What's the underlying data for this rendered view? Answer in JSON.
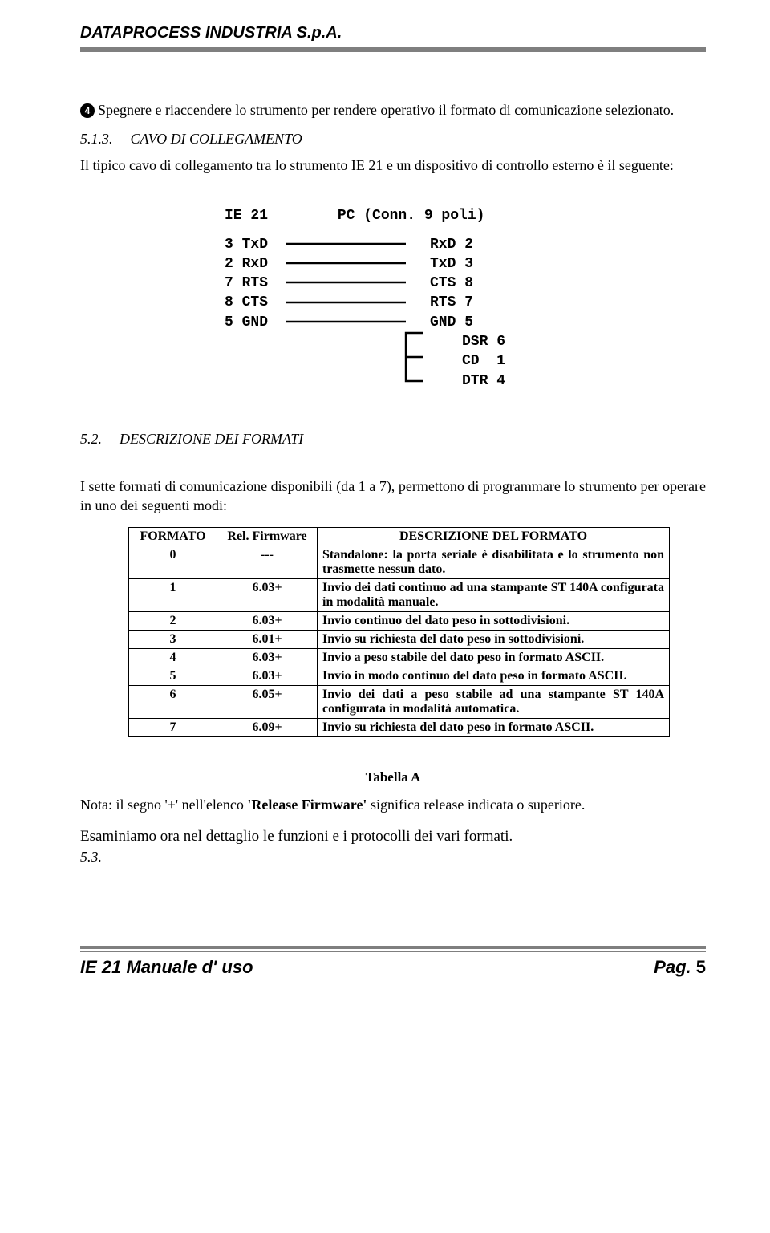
{
  "header": {
    "company": "DATAPROCESS INDUSTRIA S.p.A."
  },
  "step4": {
    "bullet": "4",
    "text": "Spegnere e riaccendere lo strumento per rendere operativo il formato di comunicazione selezionato."
  },
  "sec513": {
    "num": "5.1.3.",
    "title": "CAVO DI COLLEGAMENTO",
    "intro": "Il tipico cavo di collegamento tra lo strumento IE 21 e un dispositivo di controllo esterno è il seguente:"
  },
  "wiring": {
    "left_head": "IE 21",
    "right_head": "PC (Conn. 9 poli)",
    "pairs": [
      {
        "l": "3 TxD",
        "r": "RxD 2"
      },
      {
        "l": "2 RxD",
        "r": "TxD 3"
      },
      {
        "l": "7 RTS",
        "r": "CTS 8"
      },
      {
        "l": "8 CTS",
        "r": "RTS 7"
      },
      {
        "l": "5 GND",
        "r": "GND 5"
      }
    ],
    "extras": [
      "DSR 6",
      "CD  1",
      "DTR 4"
    ]
  },
  "sec52": {
    "num": "5.2.",
    "title": "DESCRIZIONE DEI FORMATI",
    "intro": "I sette formati di comunicazione disponibili (da 1 a 7), permettono di programmare lo strumento per operare in uno dei seguenti modi:"
  },
  "table": {
    "headers": [
      "FORMATO",
      "Rel. Firmware",
      "DESCRIZIONE DEL FORMATO"
    ],
    "rows": [
      {
        "f": "0",
        "fw": "---",
        "d": "Standalone: la porta seriale è disabilitata e lo strumento non trasmette nessun dato."
      },
      {
        "f": "1",
        "fw": "6.03+",
        "d": "Invio dei dati continuo ad una stampante ST 140A configurata in modalità manuale."
      },
      {
        "f": "2",
        "fw": "6.03+",
        "d": "Invio continuo del dato peso in sottodivisioni."
      },
      {
        "f": "3",
        "fw": "6.01+",
        "d": "Invio su richiesta del dato peso in sottodivisioni."
      },
      {
        "f": "4",
        "fw": "6.03+",
        "d": "Invio a peso stabile del dato peso in formato ASCII."
      },
      {
        "f": "5",
        "fw": "6.03+",
        "d": "Invio in modo continuo del dato peso in formato ASCII."
      },
      {
        "f": "6",
        "fw": "6.05+",
        "d": "Invio dei dati a peso stabile ad una stampante ST 140A configurata in modalità automatica."
      },
      {
        "f": "7",
        "fw": "6.09+",
        "d": "Invio su richiesta del dato peso in formato ASCII."
      }
    ],
    "caption": "Tabella A"
  },
  "note": {
    "prefix": "Nota: il segno '+' nell'elenco ",
    "bold": "'Release Firmware'",
    "suffix": " significa release indicata o superiore."
  },
  "closing": {
    "text": "Esaminiamo ora nel dettaglio le funzioni e i protocolli dei vari formati.",
    "sec": "5.3."
  },
  "footer": {
    "left": "IE 21   Manuale d' uso",
    "right_label": "Pag.",
    "right_num": "5"
  }
}
